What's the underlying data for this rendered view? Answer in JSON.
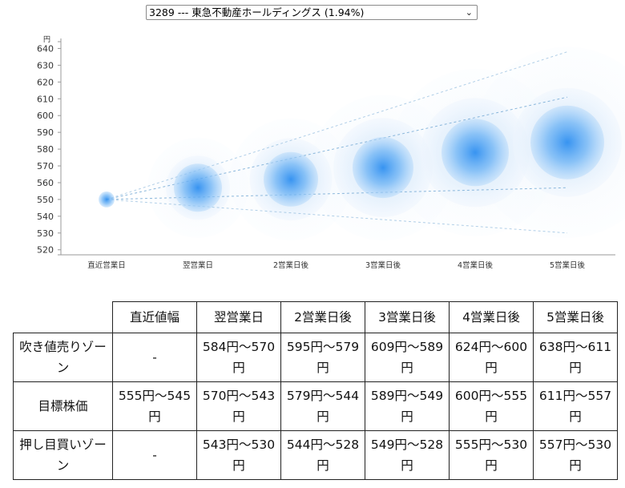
{
  "selector": {
    "value": "3289 --- 東急不動産ホールディングス (1.94%)",
    "chevron": "⌄"
  },
  "chart_data": {
    "type": "scatter",
    "unit_label": "円",
    "yticks": [
      520,
      530,
      540,
      550,
      560,
      570,
      580,
      590,
      600,
      610,
      620,
      630,
      640
    ],
    "ylim": [
      517,
      645
    ],
    "categories": [
      "直近営業日",
      "翌営業日",
      "2営業日後",
      "3営業日後",
      "4営業日後",
      "5営業日後"
    ],
    "target": [
      550,
      557,
      562,
      569,
      578,
      584
    ],
    "sell_upper": [
      550,
      584,
      595,
      609,
      624,
      638
    ],
    "sell_lower": [
      550,
      570,
      579,
      589,
      600,
      611
    ],
    "buy_upper": [
      550,
      543,
      544,
      549,
      555,
      557
    ],
    "buy_lower": [
      550,
      530,
      528,
      528,
      530,
      530
    ],
    "colors": {
      "bubble": "#2f8ff0",
      "halo": "#d6e9fb",
      "dashed": "#7fb0d8",
      "axis": "#999999"
    }
  },
  "table": {
    "headers": [
      "",
      "直近値幅",
      "翌営業日",
      "2営業日後",
      "3営業日後",
      "4営業日後",
      "5営業日後"
    ],
    "rows": [
      {
        "label": "吹き値売りゾーン",
        "cells": [
          "-",
          "584円〜570円",
          "595円〜579円",
          "609円〜589円",
          "624円〜600円",
          "638円〜611円"
        ]
      },
      {
        "label": "目標株価",
        "cells": [
          "555円〜545円",
          "570円〜543円",
          "579円〜544円",
          "589円〜549円",
          "600円〜555円",
          "611円〜557円"
        ]
      },
      {
        "label": "押し目買いゾーン",
        "cells": [
          "-",
          "543円〜530円",
          "544円〜528円",
          "549円〜528円",
          "555円〜530円",
          "557円〜530円"
        ]
      }
    ]
  }
}
